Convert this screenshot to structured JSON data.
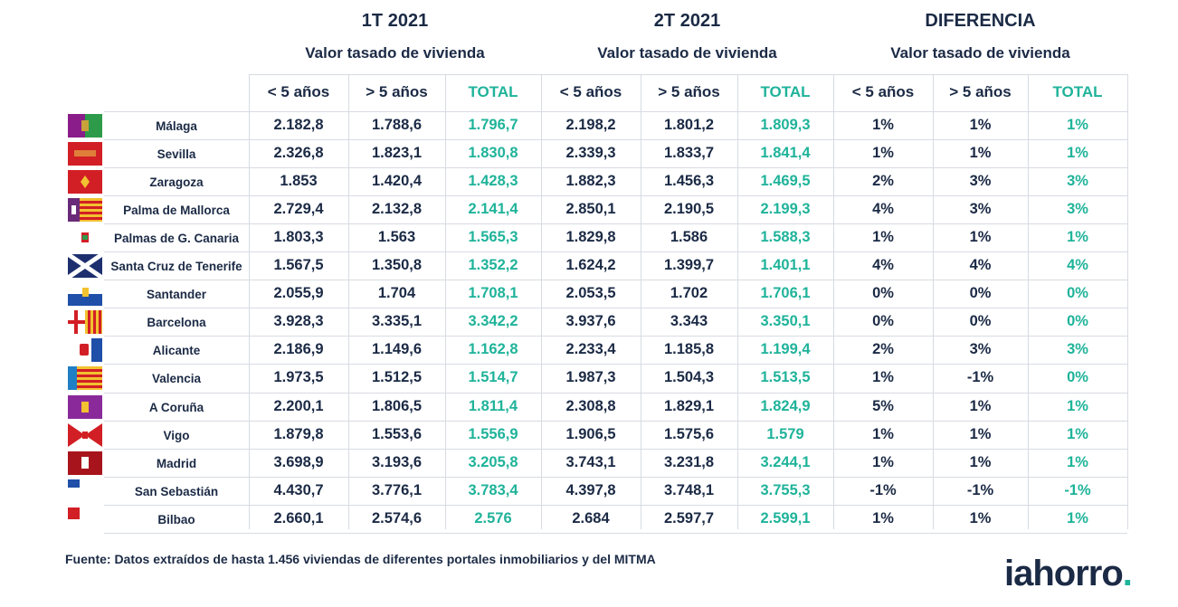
{
  "groups": [
    {
      "title": "1T 2021",
      "subtitle": "Valor tasado de vivienda"
    },
    {
      "title": "2T 2021",
      "subtitle": "Valor tasado de vivienda"
    },
    {
      "title": "DIFERENCIA",
      "subtitle": "Valor tasado de vivienda"
    }
  ],
  "column_labels": [
    "< 5 años",
    "> 5 años",
    "TOTAL"
  ],
  "rows": [
    {
      "city": "Málaga",
      "flag": "malaga-flag",
      "values": [
        "2.182,8",
        "1.788,6",
        "1.796,7",
        "2.198,2",
        "1.801,2",
        "1.809,3",
        "1%",
        "1%",
        "1%"
      ]
    },
    {
      "city": "Sevilla",
      "flag": "sevilla-flag",
      "values": [
        "2.326,8",
        "1.823,1",
        "1.830,8",
        "2.339,3",
        "1.833,7",
        "1.841,4",
        "1%",
        "1%",
        "1%"
      ]
    },
    {
      "city": "Zaragoza",
      "flag": "zaragoza-flag",
      "values": [
        "1.853",
        "1.420,4",
        "1.428,3",
        "1.882,3",
        "1.456,3",
        "1.469,5",
        "2%",
        "3%",
        "3%"
      ]
    },
    {
      "city": "Palma de Mallorca",
      "flag": "palma-flag",
      "values": [
        "2.729,4",
        "2.132,8",
        "2.141,4",
        "2.850,1",
        "2.190,5",
        "2.199,3",
        "4%",
        "3%",
        "3%"
      ]
    },
    {
      "city": "Palmas de G. Canaria",
      "flag": "las-palmas-flag",
      "values": [
        "1.803,3",
        "1.563",
        "1.565,3",
        "1.829,8",
        "1.586",
        "1.588,3",
        "1%",
        "1%",
        "1%"
      ]
    },
    {
      "city": "Santa Cruz de Tenerife",
      "flag": "tenerife-flag",
      "values": [
        "1.567,5",
        "1.350,8",
        "1.352,2",
        "1.624,2",
        "1.399,7",
        "1.401,1",
        "4%",
        "4%",
        "4%"
      ]
    },
    {
      "city": "Santander",
      "flag": "santander-flag",
      "values": [
        "2.055,9",
        "1.704",
        "1.708,1",
        "2.053,5",
        "1.702",
        "1.706,1",
        "0%",
        "0%",
        "0%"
      ]
    },
    {
      "city": "Barcelona",
      "flag": "barcelona-flag",
      "values": [
        "3.928,3",
        "3.335,1",
        "3.342,2",
        "3.937,6",
        "3.343",
        "3.350,1",
        "0%",
        "0%",
        "0%"
      ]
    },
    {
      "city": "Alicante",
      "flag": "alicante-flag",
      "values": [
        "2.186,9",
        "1.149,6",
        "1.162,8",
        "2.233,4",
        "1.185,8",
        "1.199,4",
        "2%",
        "3%",
        "3%"
      ]
    },
    {
      "city": "Valencia",
      "flag": "valencia-flag",
      "values": [
        "1.973,5",
        "1.512,5",
        "1.514,7",
        "1.987,3",
        "1.504,3",
        "1.513,5",
        "1%",
        "-1%",
        "0%"
      ]
    },
    {
      "city": "A Coruña",
      "flag": "coruna-flag",
      "values": [
        "2.200,1",
        "1.806,5",
        "1.811,4",
        "2.308,8",
        "1.829,1",
        "1.824,9",
        "5%",
        "1%",
        "1%"
      ]
    },
    {
      "city": "Vigo",
      "flag": "vigo-flag",
      "values": [
        "1.879,8",
        "1.553,6",
        "1.556,9",
        "1.906,5",
        "1.575,6",
        "1.579",
        "1%",
        "1%",
        "1%"
      ]
    },
    {
      "city": "Madrid",
      "flag": "madrid-flag",
      "values": [
        "3.698,9",
        "3.193,6",
        "3.205,8",
        "3.743,1",
        "3.231,8",
        "3.244,1",
        "1%",
        "1%",
        "1%"
      ]
    },
    {
      "city": "San Sebastián",
      "flag": "san-sebastian-flag",
      "values": [
        "4.430,7",
        "3.776,1",
        "3.783,4",
        "4.397,8",
        "3.748,1",
        "3.755,3",
        "-1%",
        "-1%",
        "-1%"
      ]
    },
    {
      "city": "Bilbao",
      "flag": "bilbao-flag",
      "values": [
        "2.660,1",
        "2.574,6",
        "2.576",
        "2.684",
        "2.597,7",
        "2.599,1",
        "1%",
        "1%",
        "1%"
      ]
    }
  ],
  "colors": {
    "text": "#1b2a45",
    "total": "#1fb39a",
    "grid": "#d7dbe2"
  },
  "source": "Fuente: Datos extraídos de hasta 1.456 viviendas de diferentes portales inmobiliarios y del MITMA",
  "logo": {
    "text": "iahorro",
    "dot": "."
  }
}
